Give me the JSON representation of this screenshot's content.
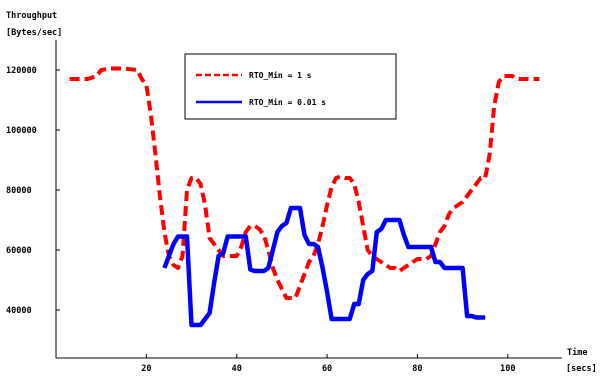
{
  "chart_data": {
    "type": "line",
    "ylabel_lines": [
      "Throughput",
      "[Bytes/sec]"
    ],
    "xlabel_lines": [
      "Time",
      "[secs]"
    ],
    "xlim": [
      0,
      112
    ],
    "ylim": [
      24000,
      130000
    ],
    "x_ticks": [
      20,
      40,
      60,
      80,
      100
    ],
    "y_ticks": [
      40000,
      60000,
      80000,
      100000,
      120000
    ],
    "x_tick_labels": [
      "20",
      "40",
      "60",
      "80",
      "100"
    ],
    "y_tick_labels": [
      "40000",
      "60000",
      "80000",
      "100000",
      "120000"
    ],
    "legend_position": "top-center",
    "series": [
      {
        "name": "RTO_Min = 1 s",
        "color": "#ff0000",
        "style": "dashed",
        "x": [
          3,
          7,
          9,
          10,
          12,
          15,
          18,
          19,
          20,
          21,
          22,
          23,
          24,
          25,
          26,
          27,
          28,
          29,
          30,
          31,
          32,
          33,
          34,
          35,
          36,
          37,
          38,
          39,
          40,
          41,
          42,
          43,
          44,
          45,
          46,
          47,
          48,
          49,
          50,
          51,
          52,
          53,
          54,
          55,
          56,
          57,
          58,
          59,
          60,
          61,
          62,
          63,
          64,
          65,
          66,
          67,
          68,
          69,
          70,
          71,
          72,
          73,
          74,
          75,
          76,
          77,
          78,
          79,
          80,
          81,
          82,
          83,
          84,
          85,
          86,
          87,
          88,
          89,
          90,
          91,
          92,
          93,
          94,
          95,
          96,
          97,
          98,
          99,
          100,
          101,
          102,
          103,
          104,
          105,
          106,
          107
        ],
        "y": [
          117000,
          117000,
          118000,
          120000,
          120500,
          120500,
          120000,
          117000,
          115000,
          105000,
          92000,
          78000,
          66000,
          58000,
          55000,
          54000,
          58000,
          80000,
          84000,
          84000,
          82000,
          75000,
          64000,
          62000,
          60000,
          58000,
          58000,
          58000,
          58000,
          61000,
          66000,
          68000,
          68000,
          67000,
          65000,
          60000,
          54000,
          50000,
          47000,
          44000,
          44000,
          44000,
          48000,
          52000,
          56000,
          58000,
          62000,
          68000,
          75000,
          81000,
          84000,
          84500,
          84000,
          84000,
          82000,
          76000,
          68000,
          60000,
          58000,
          57000,
          56000,
          55000,
          54000,
          54000,
          53000,
          54000,
          55000,
          56000,
          57000,
          57000,
          57000,
          58000,
          62000,
          66000,
          68000,
          72000,
          74000,
          75000,
          76000,
          78000,
          80000,
          82000,
          84000,
          84000,
          92000,
          108000,
          116000,
          118000,
          118000,
          118000,
          117000,
          117000,
          117000,
          117000,
          117000,
          117000
        ]
      },
      {
        "name": "RTO_Min = 0.01 s",
        "color": "#0000ff",
        "style": "solid",
        "x": [
          24,
          25,
          26,
          27,
          28,
          29,
          30,
          31,
          32,
          33,
          34,
          35,
          36,
          37,
          38,
          39,
          40,
          41,
          42,
          43,
          44,
          45,
          46,
          47,
          48,
          49,
          50,
          51,
          52,
          53,
          54,
          55,
          56,
          57,
          58,
          59,
          60,
          61,
          62,
          63,
          64,
          65,
          66,
          67,
          68,
          69,
          70,
          71,
          72,
          73,
          74,
          75,
          76,
          77,
          78,
          79,
          80,
          81,
          82,
          83,
          84,
          85,
          86,
          87,
          88,
          89,
          90,
          91,
          92,
          93,
          94,
          95
        ],
        "y": [
          54000,
          58000,
          62000,
          64500,
          64500,
          64500,
          35000,
          35000,
          35000,
          37000,
          39000,
          49000,
          58000,
          59000,
          64500,
          64500,
          64500,
          64500,
          64500,
          53500,
          53000,
          53000,
          53000,
          54000,
          60000,
          66000,
          68000,
          69000,
          74000,
          74000,
          74000,
          65000,
          62000,
          62000,
          61000,
          54000,
          46000,
          37000,
          37000,
          37000,
          37000,
          37000,
          42000,
          42000,
          50000,
          52000,
          53000,
          66000,
          67000,
          70000,
          70000,
          70000,
          70000,
          65000,
          61000,
          61000,
          61000,
          61000,
          61000,
          61000,
          56000,
          56000,
          54000,
          54000,
          54000,
          54000,
          54000,
          38000,
          38000,
          37500,
          37500,
          37500
        ]
      }
    ]
  }
}
